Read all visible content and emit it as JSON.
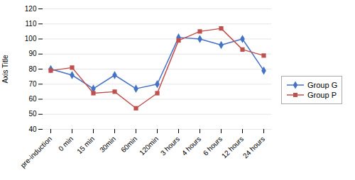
{
  "chart_data": {
    "type": "line",
    "categories": [
      "pre-induction",
      "0 min",
      "15 min",
      "30min",
      "60min",
      "120min",
      "3 hours",
      "4 hours",
      "6 hours",
      "12 hours",
      "24 hours"
    ],
    "series": [
      {
        "name": "Group G",
        "color": "#4472C4",
        "marker": "diamond",
        "values": [
          80,
          76,
          67,
          76,
          67,
          70,
          101,
          100,
          96,
          100,
          79
        ]
      },
      {
        "name": "Group P",
        "color": "#C0504D",
        "marker": "square",
        "values": [
          79,
          81,
          64,
          65,
          54,
          64,
          99,
          105,
          107,
          93,
          89
        ]
      }
    ],
    "ylabel": "Axis Title",
    "ylim": [
      40,
      120
    ],
    "yticks": [
      40,
      50,
      60,
      70,
      80,
      90,
      100,
      110,
      120
    ],
    "grid": true,
    "legend": "right"
  }
}
